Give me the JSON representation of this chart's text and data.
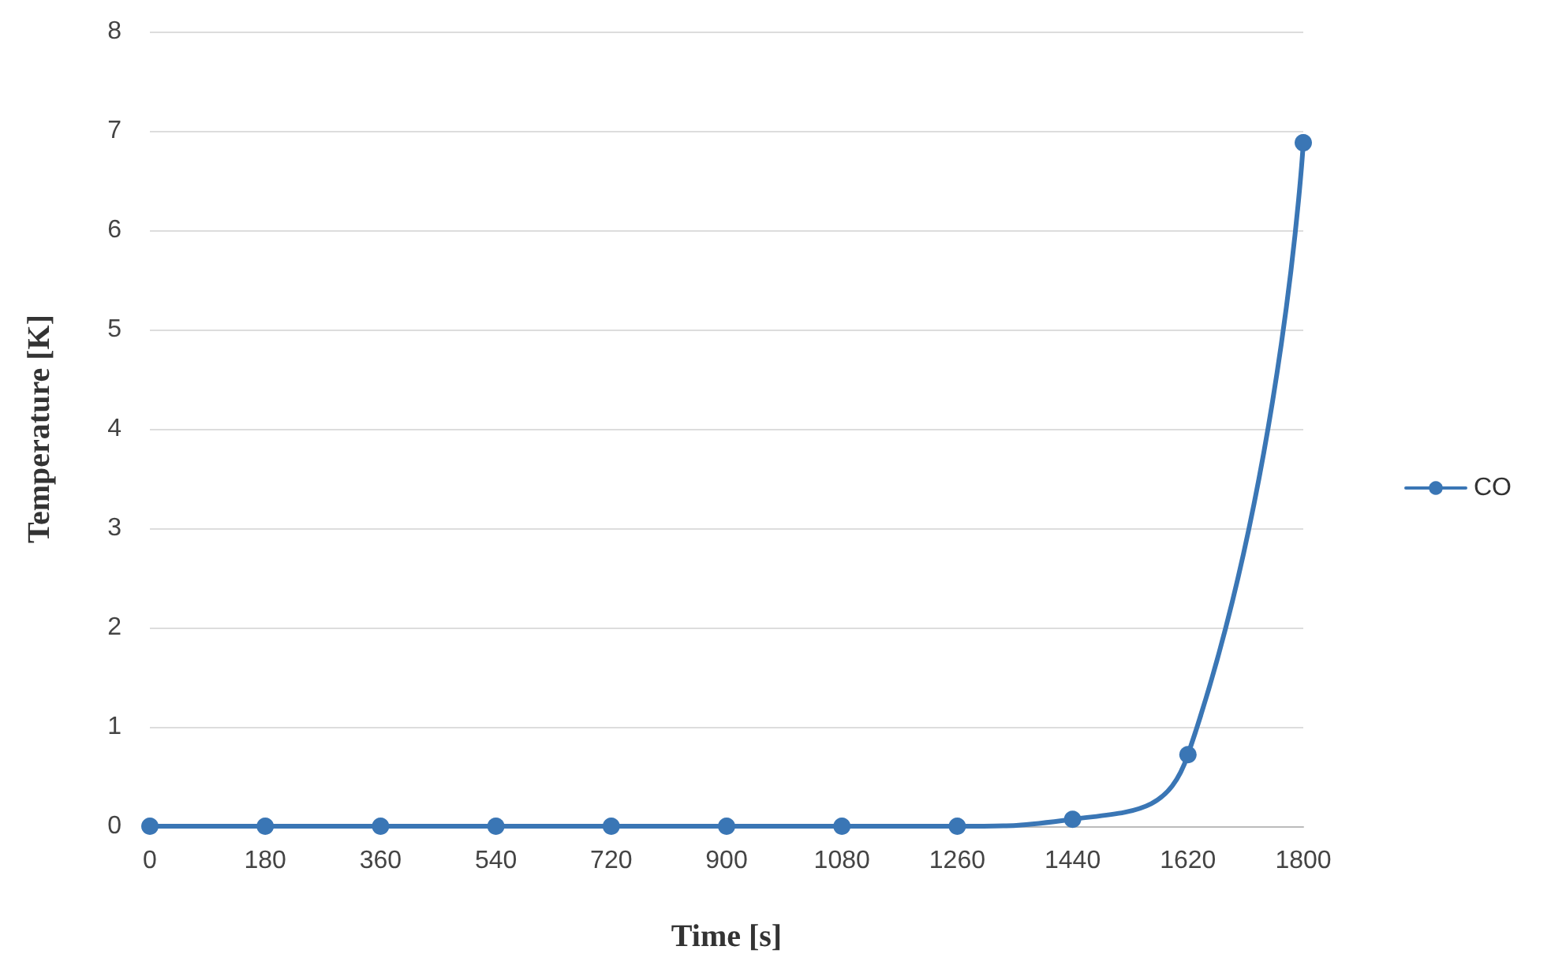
{
  "chart_data": {
    "type": "line",
    "xlabel": "Time [s]",
    "ylabel": "Temperature [K]",
    "categories": [
      "0",
      "180",
      "360",
      "540",
      "720",
      "900",
      "1080",
      "1260",
      "1440",
      "1620",
      "1800"
    ],
    "series": [
      {
        "name": "CO",
        "color": "#3a76b5",
        "values": [
          0,
          0,
          0,
          0,
          0,
          0,
          0,
          0,
          0.07,
          0.72,
          6.88
        ]
      }
    ],
    "ylim": [
      0,
      8
    ],
    "yticks": [
      0,
      1,
      2,
      3,
      4,
      5,
      6,
      7,
      8
    ],
    "grid": "y",
    "legend": "right",
    "marker": "circle",
    "line_style": "solid"
  }
}
